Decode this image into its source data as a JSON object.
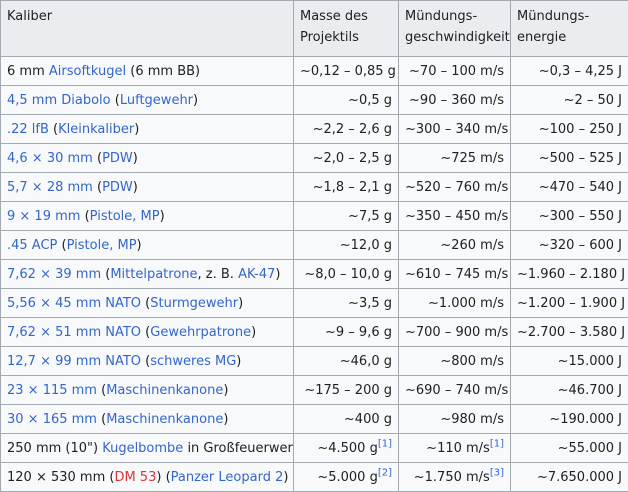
{
  "headers": {
    "caliber": "Kaliber",
    "mass": "Masse des Projektils",
    "velocity": "Mündungs-geschwindigkeit",
    "energy": "Mündungs-energie"
  },
  "rows": [
    {
      "parts": [
        {
          "t": "6 mm ",
          "c": ""
        },
        {
          "t": "Airsoftkugel",
          "c": "link"
        },
        {
          "t": " (6 mm BB)",
          "c": ""
        }
      ],
      "mass": "~0,12 – 0,85 g",
      "mass_ref": "",
      "velocity": "~70 – 100 m/s",
      "velocity_ref": "",
      "energy": "~0,3 – 4,25 J"
    },
    {
      "parts": [
        {
          "t": "4,5 mm Diabolo",
          "c": "link"
        },
        {
          "t": " (",
          "c": ""
        },
        {
          "t": "Luftgewehr",
          "c": "link"
        },
        {
          "t": ")",
          "c": ""
        }
      ],
      "mass": "~0,5 g",
      "mass_ref": "",
      "velocity": "~90 – 360 m/s",
      "velocity_ref": "",
      "energy": "~2 – 50 J"
    },
    {
      "parts": [
        {
          "t": ".22 lfB",
          "c": "link"
        },
        {
          "t": " (",
          "c": ""
        },
        {
          "t": "Kleinkaliber",
          "c": "link"
        },
        {
          "t": ")",
          "c": ""
        }
      ],
      "mass": "~2,2 – 2,6 g",
      "mass_ref": "",
      "velocity": "~300 – 340 m/s",
      "velocity_ref": "",
      "energy": "~100 – 250 J"
    },
    {
      "parts": [
        {
          "t": "4,6 × 30 mm",
          "c": "link"
        },
        {
          "t": " (",
          "c": ""
        },
        {
          "t": "PDW",
          "c": "link"
        },
        {
          "t": ")",
          "c": ""
        }
      ],
      "mass": "~2,0 – 2,5 g",
      "mass_ref": "",
      "velocity": "~725 m/s",
      "velocity_ref": "",
      "energy": "~500 – 525 J"
    },
    {
      "parts": [
        {
          "t": "5,7 × 28 mm",
          "c": "link"
        },
        {
          "t": " (",
          "c": ""
        },
        {
          "t": "PDW",
          "c": "link"
        },
        {
          "t": ")",
          "c": ""
        }
      ],
      "mass": "~1,8 – 2,1 g",
      "mass_ref": "",
      "velocity": "~520 – 760 m/s",
      "velocity_ref": "",
      "energy": "~470 – 540 J"
    },
    {
      "parts": [
        {
          "t": "9 × 19 mm",
          "c": "link"
        },
        {
          "t": " (",
          "c": ""
        },
        {
          "t": "Pistole, MP",
          "c": "link"
        },
        {
          "t": ")",
          "c": ""
        }
      ],
      "mass": "~7,5 g",
      "mass_ref": "",
      "velocity": "~350 – 450 m/s",
      "velocity_ref": "",
      "energy": "~300 – 550 J"
    },
    {
      "parts": [
        {
          "t": ".45 ACP",
          "c": "link"
        },
        {
          "t": " (",
          "c": ""
        },
        {
          "t": "Pistole, MP",
          "c": "link"
        },
        {
          "t": ")",
          "c": ""
        }
      ],
      "mass": "~12,0 g",
      "mass_ref": "",
      "velocity": "~260 m/s",
      "velocity_ref": "",
      "energy": "~320 – 600 J"
    },
    {
      "parts": [
        {
          "t": "7,62 × 39 mm",
          "c": "link"
        },
        {
          "t": " (",
          "c": ""
        },
        {
          "t": "Mittelpatrone",
          "c": "link"
        },
        {
          "t": ", z. B. ",
          "c": ""
        },
        {
          "t": "AK-47",
          "c": "link"
        },
        {
          "t": ")",
          "c": ""
        }
      ],
      "mass": "~8,0 – 10,0 g",
      "mass_ref": "",
      "velocity": "~610 – 745 m/s",
      "velocity_ref": "",
      "energy": "~1.960 – 2.180 J"
    },
    {
      "parts": [
        {
          "t": "5,56 × 45 mm NATO",
          "c": "link"
        },
        {
          "t": " (",
          "c": ""
        },
        {
          "t": "Sturmgewehr",
          "c": "link"
        },
        {
          "t": ")",
          "c": ""
        }
      ],
      "mass": "~3,5 g",
      "mass_ref": "",
      "velocity": "~1.000 m/s",
      "velocity_ref": "",
      "energy": "~1.200 – 1.900 J"
    },
    {
      "parts": [
        {
          "t": "7,62 × 51 mm NATO",
          "c": "link"
        },
        {
          "t": " (",
          "c": ""
        },
        {
          "t": "Gewehrpatrone",
          "c": "link"
        },
        {
          "t": ")",
          "c": ""
        }
      ],
      "mass": "~9 – 9,6 g",
      "mass_ref": "",
      "velocity": "~700 – 900 m/s",
      "velocity_ref": "",
      "energy": "~2.700 – 3.580 J"
    },
    {
      "parts": [
        {
          "t": "12,7 × 99 mm NATO",
          "c": "link"
        },
        {
          "t": " (",
          "c": ""
        },
        {
          "t": "schweres MG",
          "c": "link"
        },
        {
          "t": ")",
          "c": ""
        }
      ],
      "mass": "~46,0 g",
      "mass_ref": "",
      "velocity": "~800 m/s",
      "velocity_ref": "",
      "energy": "~15.000 J"
    },
    {
      "parts": [
        {
          "t": "23 × 115 mm",
          "c": "link"
        },
        {
          "t": " (",
          "c": ""
        },
        {
          "t": "Maschinenkanone",
          "c": "link"
        },
        {
          "t": ")",
          "c": ""
        }
      ],
      "mass": "~175 – 200 g",
      "mass_ref": "",
      "velocity": "~690 – 740 m/s",
      "velocity_ref": "",
      "energy": "~46.700 J"
    },
    {
      "parts": [
        {
          "t": "30 × 165 mm",
          "c": "link"
        },
        {
          "t": " (",
          "c": ""
        },
        {
          "t": "Maschinenkanone",
          "c": "link"
        },
        {
          "t": ")",
          "c": ""
        }
      ],
      "mass": "~400 g",
      "mass_ref": "",
      "velocity": "~980 m/s",
      "velocity_ref": "",
      "energy": "~190.000 J"
    },
    {
      "parts": [
        {
          "t": "250 mm (10\") ",
          "c": ""
        },
        {
          "t": "Kugelbombe",
          "c": "link"
        },
        {
          "t": " in Großfeuerwerk",
          "c": ""
        }
      ],
      "mass": "~4.500 g",
      "mass_ref": "[1]",
      "velocity": "~110 m/s",
      "velocity_ref": "[1]",
      "energy": "~55.000 J"
    },
    {
      "parts": [
        {
          "t": "120 × 530 mm (",
          "c": ""
        },
        {
          "t": "DM 53",
          "c": "red"
        },
        {
          "t": ") (",
          "c": ""
        },
        {
          "t": "Panzer Leopard 2",
          "c": "link"
        },
        {
          "t": ")",
          "c": ""
        }
      ],
      "mass": "~5.000 g",
      "mass_ref": "[2]",
      "velocity": "~1.750 m/s",
      "velocity_ref": "[3]",
      "energy": "~7.650.000 J"
    }
  ],
  "colors": {
    "link": "#3366cc",
    "redlink": "#dd3333",
    "header_bg": "#eaecf0",
    "cell_bg": "#f8f9fa",
    "border": "#a2a9b1"
  }
}
